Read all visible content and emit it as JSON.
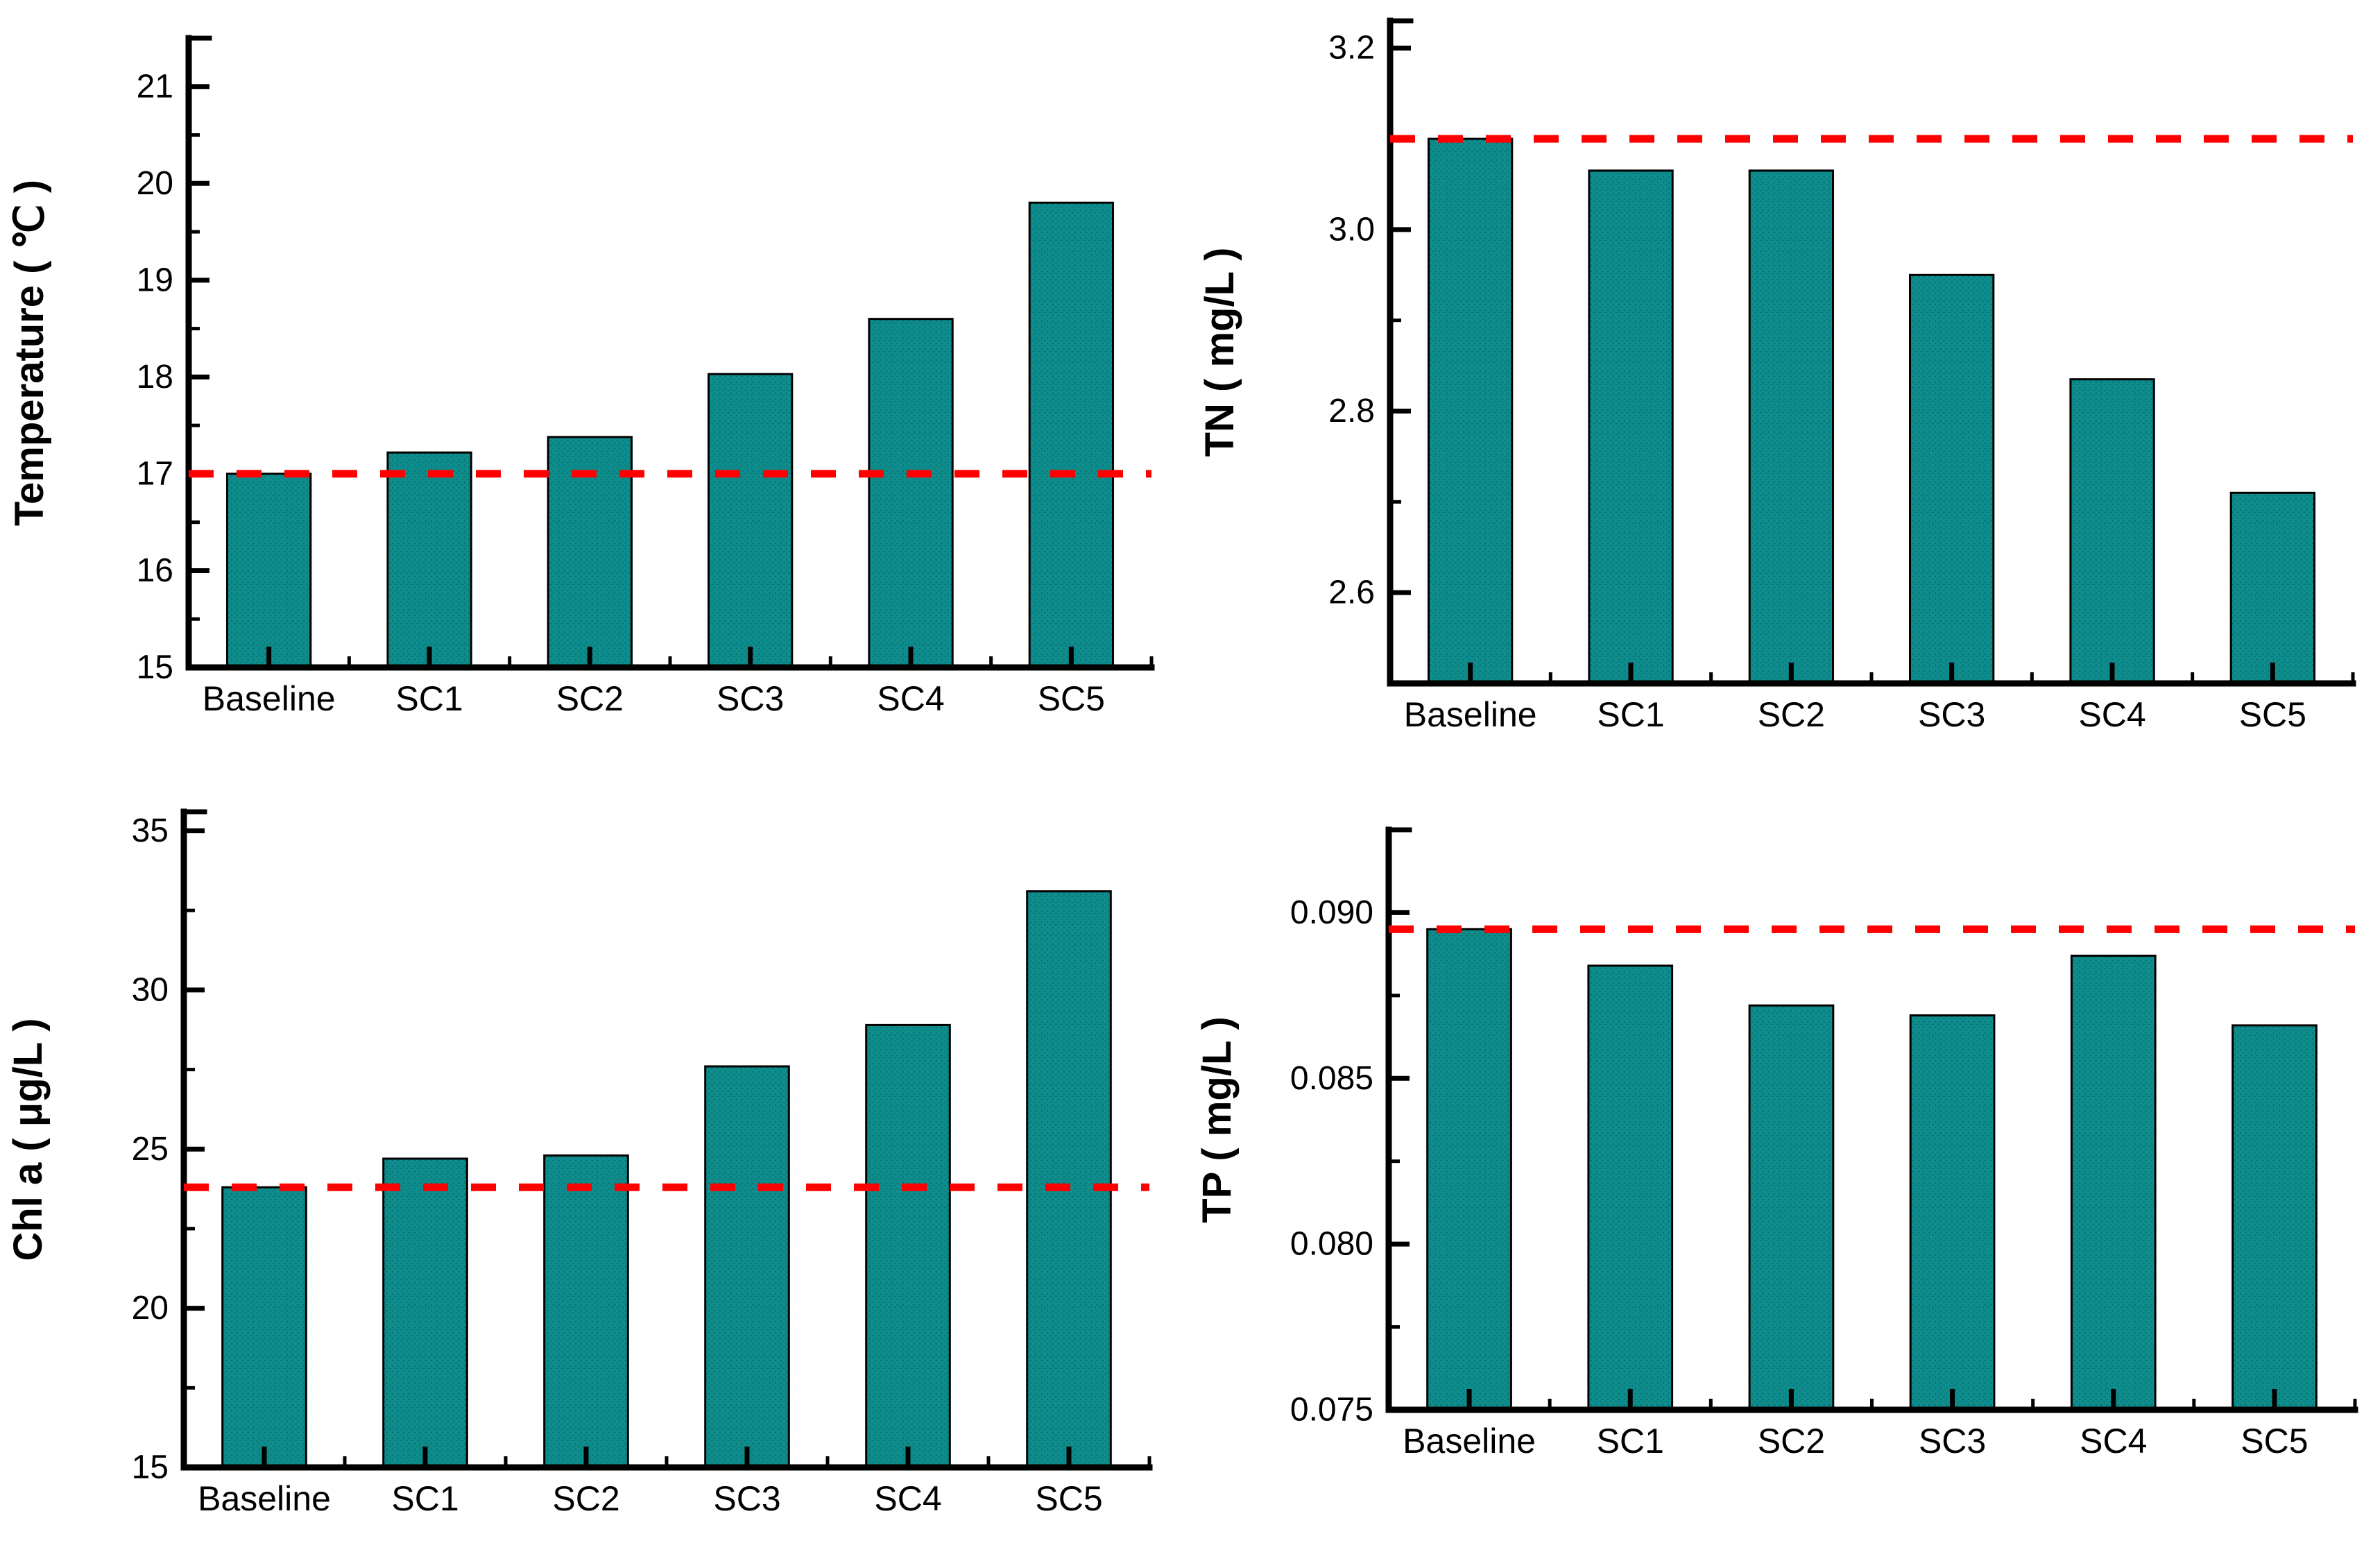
{
  "page": {
    "background": "#ffffff",
    "description_labels": {
      "scenario_labels": [
        "Baseline",
        "SC1",
        "SC2",
        "SC3",
        "SC4",
        "SC5"
      ]
    }
  },
  "style": {
    "bar_fill": "#0e8c8c",
    "bar_fill_dot": "#0a6f6f",
    "bar_stroke": "#000000",
    "axis_color": "#000000",
    "reference_line_color": "#ff0000"
  },
  "chart_data": [
    {
      "id": "temperature",
      "type": "bar",
      "title": "",
      "xlabel": "",
      "ylabel": "Temperature ( ℃ )",
      "categories": [
        "Baseline",
        "SC1",
        "SC2",
        "SC3",
        "SC4",
        "SC5"
      ],
      "values": [
        17.0,
        17.22,
        17.38,
        18.03,
        18.6,
        19.8
      ],
      "reference_line": {
        "value": 17.0,
        "style": "dashed",
        "color": "#ff0000"
      },
      "ylim": [
        15,
        21.5
      ],
      "yticks": [
        {
          "v": 15,
          "label": "15"
        },
        {
          "v": 16,
          "label": "16"
        },
        {
          "v": 17,
          "label": "17"
        },
        {
          "v": 18,
          "label": "18"
        },
        {
          "v": 19,
          "label": "19"
        },
        {
          "v": 20,
          "label": "20"
        },
        {
          "v": 21,
          "label": "21"
        }
      ],
      "yminor": [
        15.5,
        16.5,
        17.5,
        18.5,
        19.5,
        20.5
      ],
      "grid": false,
      "legend": "none"
    },
    {
      "id": "tn",
      "type": "bar",
      "title": "",
      "xlabel": "",
      "ylabel": "TN ( mg/L )",
      "categories": [
        "Baseline",
        "SC1",
        "SC2",
        "SC3",
        "SC4",
        "SC5"
      ],
      "values": [
        3.1,
        3.065,
        3.065,
        2.95,
        2.835,
        2.71
      ],
      "reference_line": {
        "value": 3.1,
        "style": "dashed",
        "color": "#ff0000"
      },
      "ylim": [
        2.5,
        3.23
      ],
      "yticks": [
        {
          "v": 2.6,
          "label": "2.6"
        },
        {
          "v": 2.8,
          "label": "2.8"
        },
        {
          "v": 3.0,
          "label": "3.0"
        },
        {
          "v": 3.2,
          "label": "3.2"
        }
      ],
      "yminor": [
        2.7,
        2.9,
        3.1
      ],
      "grid": false,
      "legend": "none"
    },
    {
      "id": "chl-a",
      "type": "bar",
      "title": "",
      "xlabel": "",
      "ylabel": "Chl a ( μg/L )",
      "categories": [
        "Baseline",
        "SC1",
        "SC2",
        "SC3",
        "SC4",
        "SC5"
      ],
      "values": [
        23.8,
        24.7,
        24.8,
        27.6,
        28.9,
        33.1
      ],
      "reference_line": {
        "value": 23.8,
        "style": "dashed",
        "color": "#ff0000"
      },
      "ylim": [
        15,
        35.6
      ],
      "yticks": [
        {
          "v": 15,
          "label": "15"
        },
        {
          "v": 20,
          "label": "20"
        },
        {
          "v": 25,
          "label": "25"
        },
        {
          "v": 30,
          "label": "30"
        },
        {
          "v": 35,
          "label": "35"
        }
      ],
      "yminor": [
        17.5,
        22.5,
        27.5,
        32.5
      ],
      "grid": false,
      "legend": "none"
    },
    {
      "id": "tp",
      "type": "bar",
      "title": "",
      "xlabel": "",
      "ylabel": "TP ( mg/L )",
      "categories": [
        "Baseline",
        "SC1",
        "SC2",
        "SC3",
        "SC4",
        "SC5"
      ],
      "values": [
        0.0895,
        0.0884,
        0.0872,
        0.0869,
        0.0887,
        0.0866
      ],
      "reference_line": {
        "value": 0.0895,
        "style": "dashed",
        "color": "#ff0000"
      },
      "ylim": [
        0.075,
        0.0925
      ],
      "yticks": [
        {
          "v": 0.075,
          "label": "0.075"
        },
        {
          "v": 0.08,
          "label": "0.080"
        },
        {
          "v": 0.085,
          "label": "0.085"
        },
        {
          "v": 0.09,
          "label": "0.090"
        }
      ],
      "yminor": [
        0.0775,
        0.0825,
        0.0875
      ],
      "grid": false,
      "legend": "none"
    }
  ]
}
